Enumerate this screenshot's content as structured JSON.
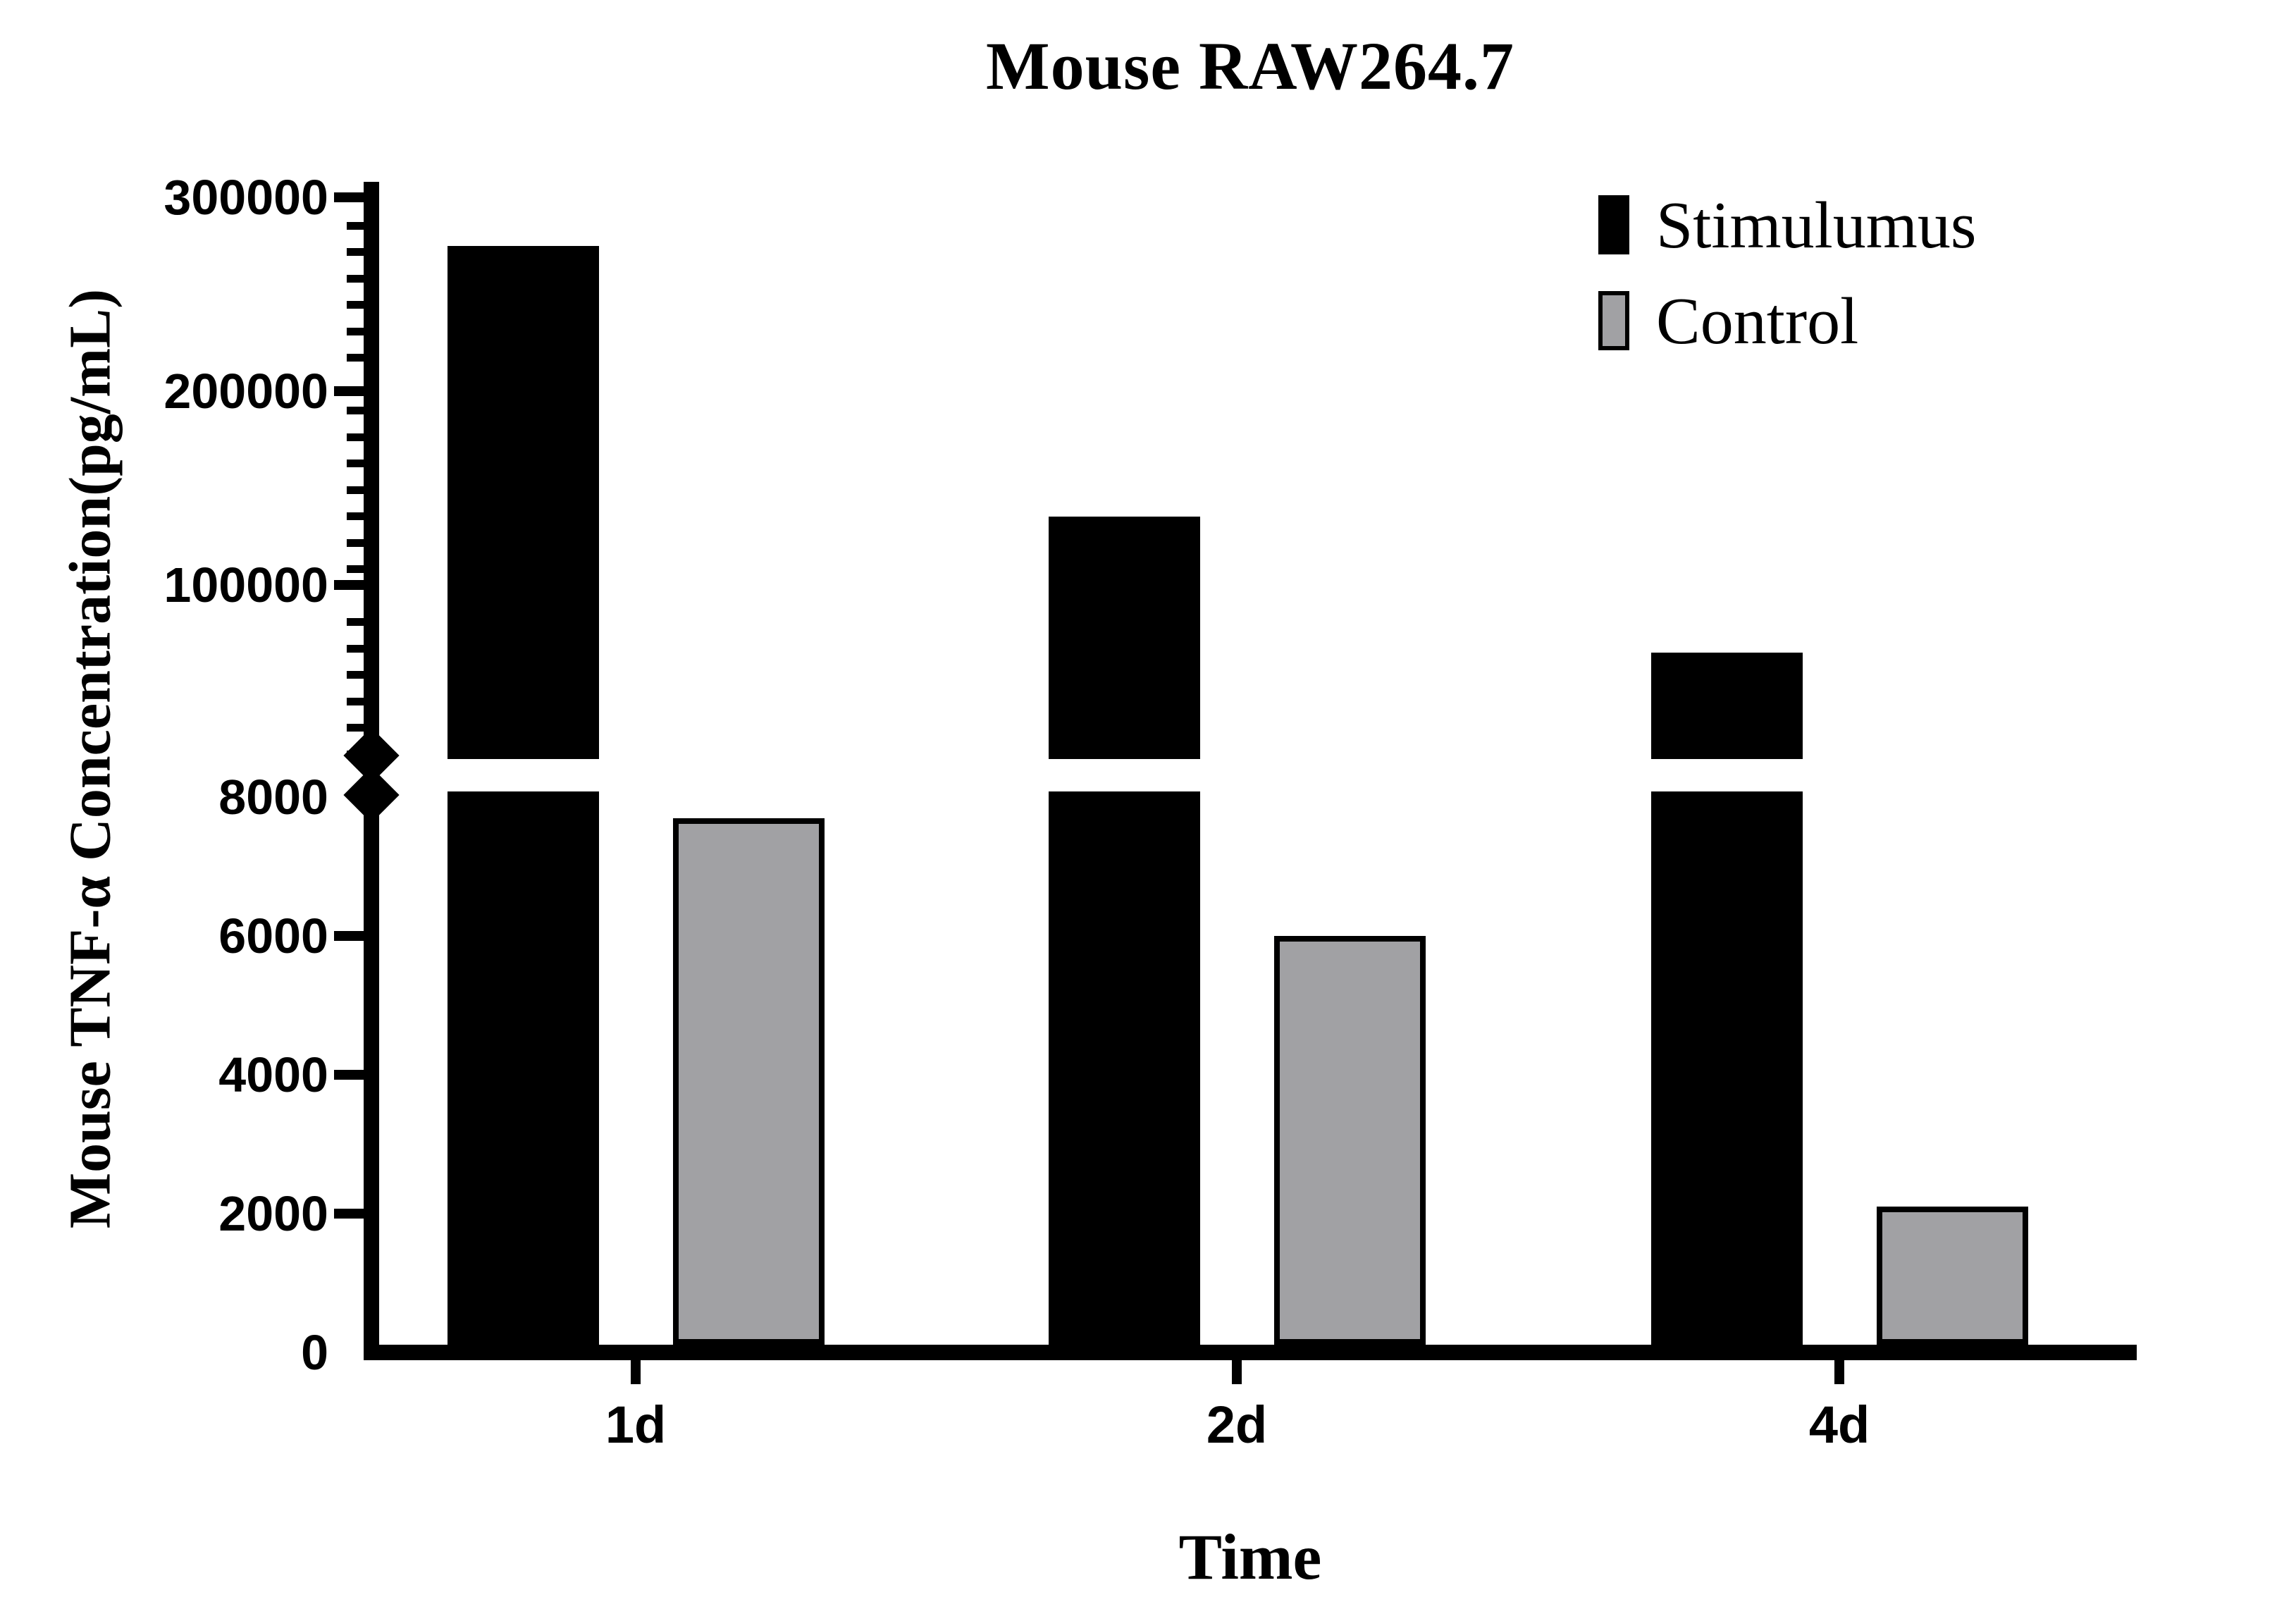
{
  "chart_data": {
    "type": "bar",
    "title": "Mouse RAW264.7",
    "xlabel": "Time",
    "ylabel": "Mouse TNF-α Concentration(pg/mL)",
    "categories": [
      "1d",
      "2d",
      "4d"
    ],
    "series": [
      {
        "name": "Stimulumus",
        "color": "#000000",
        "values": [
          275000,
          135000,
          65000
        ]
      },
      {
        "name": "Control",
        "color": "#a1a1a4",
        "values": [
          7700,
          6000,
          2100
        ]
      }
    ],
    "y_axis": {
      "lower_segment": {
        "range": [
          0,
          8000
        ],
        "tick_labels": [
          0,
          2000,
          4000,
          6000,
          8000
        ]
      },
      "upper_segment": {
        "range": [
          10000,
          300000
        ],
        "tick_labels": [
          100000,
          200000,
          300000
        ]
      },
      "axis_break_between": [
        8000,
        10000
      ],
      "grid": false
    },
    "legend": {
      "position": "top-right"
    }
  }
}
